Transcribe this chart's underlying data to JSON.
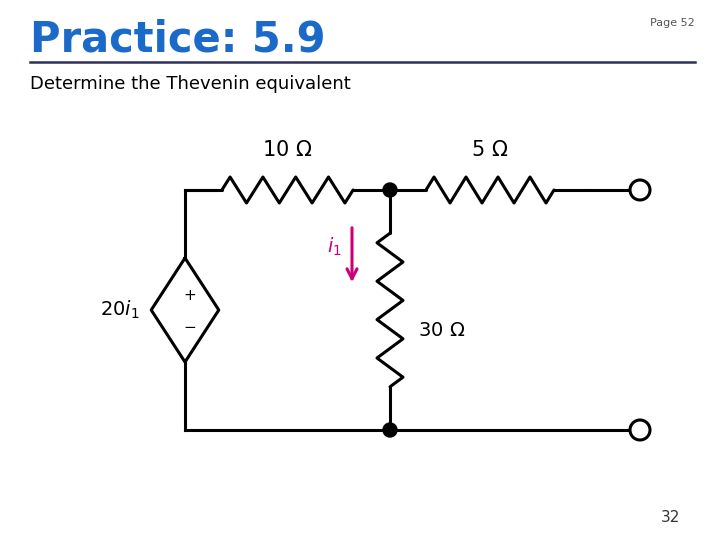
{
  "title": "Practice: 5.9",
  "title_color": "#1B6ACA",
  "page_label": "Page 52",
  "subtitle": "Determine the Thevenin equivalent",
  "page_number": "32",
  "background_color": "#ffffff",
  "line_color": "#000000",
  "dot_color": "#000000",
  "source_label": "20i_1",
  "r1_label": "10 \\Omega",
  "r2_label": "5 \\Omega",
  "r3_label": "30 \\Omega",
  "arrow_color": "#CC0077",
  "title_line_color": "#2D3060",
  "lw": 2.2
}
